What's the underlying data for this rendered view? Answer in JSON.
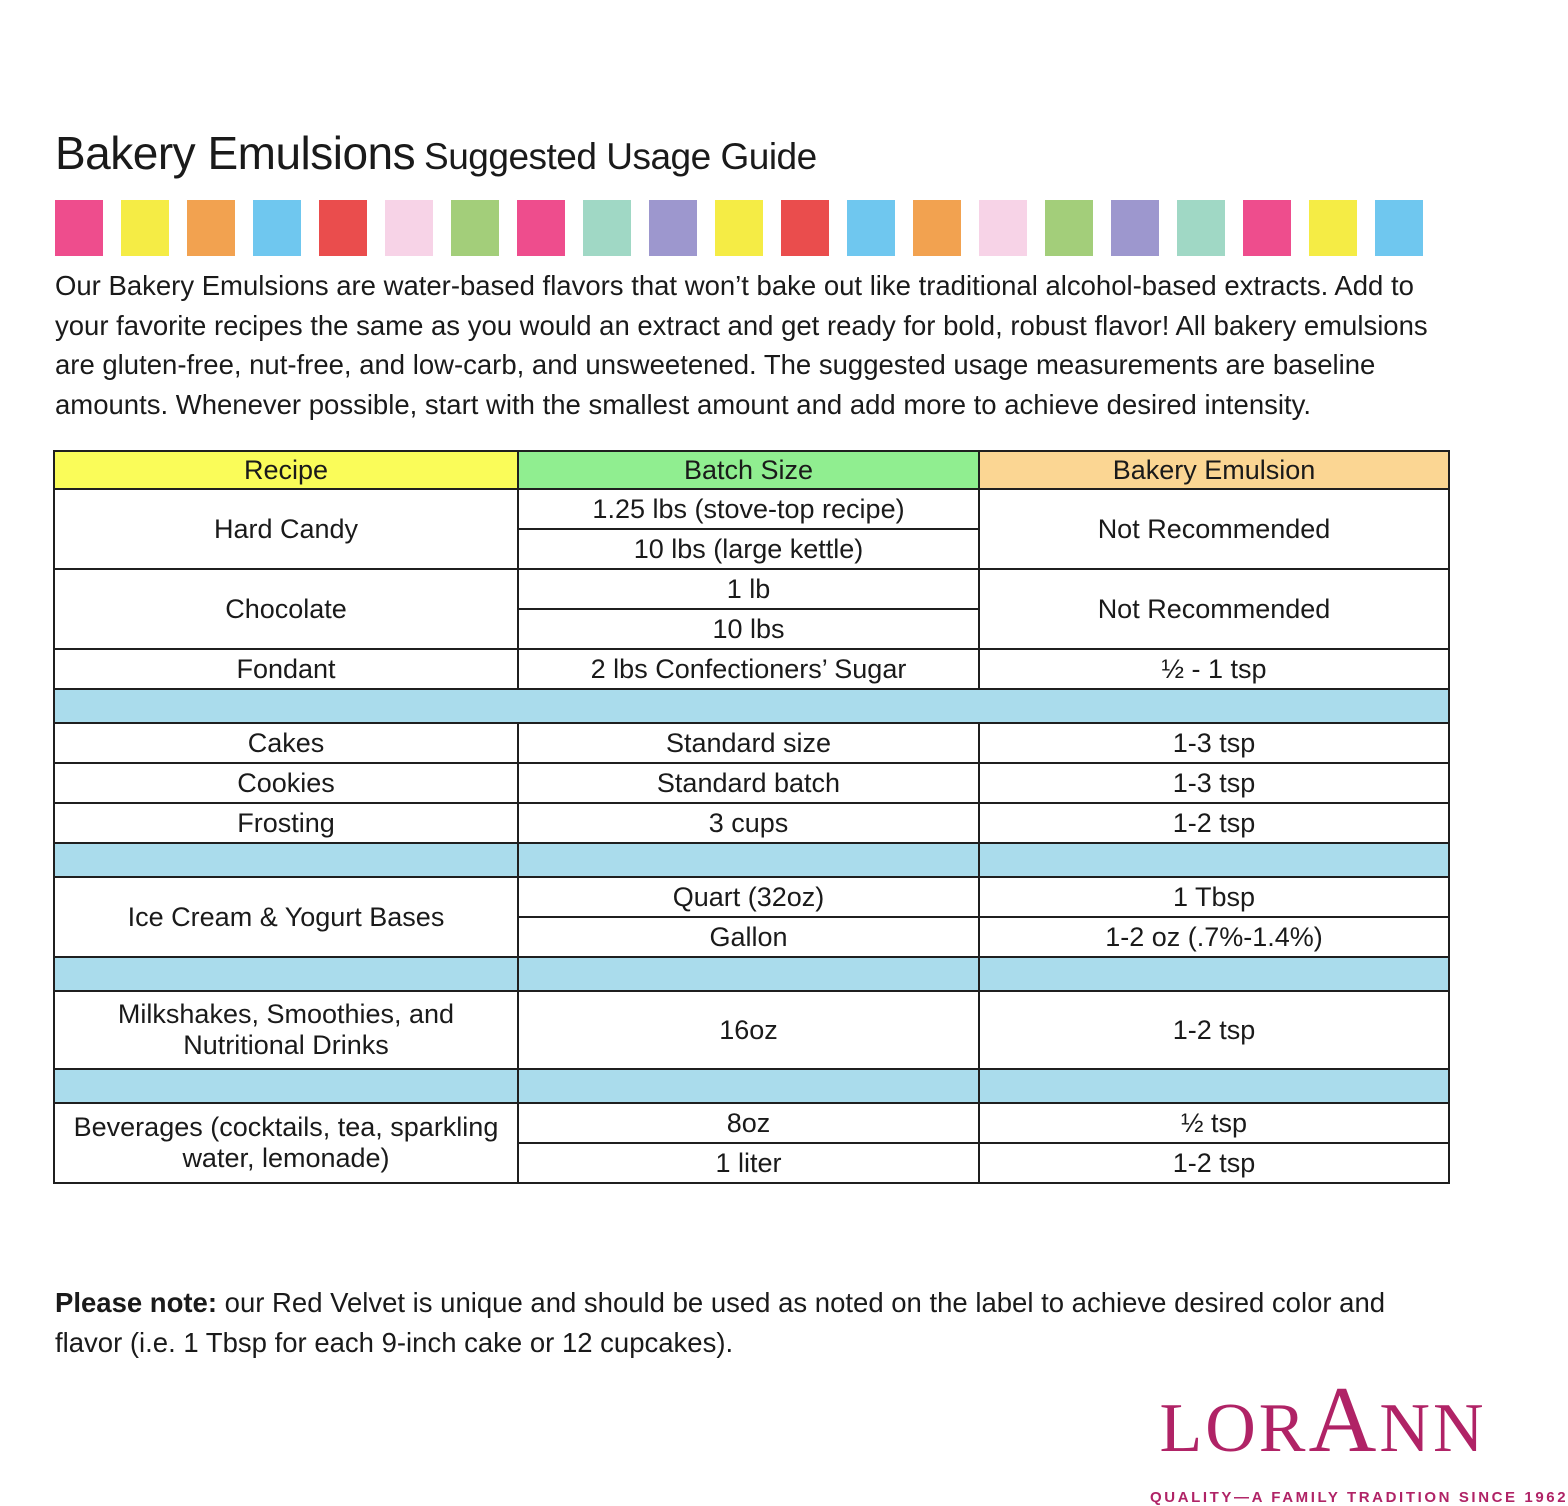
{
  "title": {
    "main": "Bakery Emulsions",
    "sub": "Suggested Usage Guide"
  },
  "decorative_squares": {
    "colors": [
      "#ee4d8d",
      "#f5ec45",
      "#f2a250",
      "#6fc7ef",
      "#ea4d4d",
      "#f7d3e7",
      "#a3ce7a",
      "#ee4d8d",
      "#a0d8c5",
      "#9d97ce",
      "#f5ec45",
      "#ea4d4d",
      "#6fc7ef",
      "#f2a250",
      "#f7d3e7",
      "#a3ce7a",
      "#9d97ce",
      "#a0d8c5",
      "#ee4d8d",
      "#f5ec45",
      "#6fc7ef"
    ]
  },
  "intro": {
    "text": "Our Bakery Emulsions are water-based flavors that won’t bake out like traditional alcohol-based extracts. Add to your favorite recipes the same as you would an extract and get ready for bold, robust flavor! All bakery emulsions are gluten-free, nut-free, and low-carb, and unsweetened. The suggested usage measurements are baseline amounts. Whenever possible, start with the smallest amount and add more to achieve desired intensity."
  },
  "table": {
    "headers": {
      "recipe": "Recipe",
      "batch_size": "Batch Size",
      "bakery_emulsion": "Bakery Emulsion"
    },
    "rows": {
      "hard_candy": {
        "recipe": "Hard Candy",
        "batch1": "1.25 lbs (stove-top recipe)",
        "batch2": "10 lbs (large kettle)",
        "emulsion": "Not Recommended"
      },
      "chocolate": {
        "recipe": "Chocolate",
        "batch1": "1 lb",
        "batch2": "10 lbs",
        "emulsion": "Not Recommended"
      },
      "fondant": {
        "recipe": "Fondant",
        "batch": "2 lbs Confectioners’ Sugar",
        "emulsion": "½ - 1 tsp"
      },
      "cakes": {
        "recipe": "Cakes",
        "batch": "Standard size",
        "emulsion": "1-3 tsp"
      },
      "cookies": {
        "recipe": "Cookies",
        "batch": "Standard batch",
        "emulsion": "1-3 tsp"
      },
      "frosting": {
        "recipe": "Frosting",
        "batch": "3 cups",
        "emulsion": "1-2 tsp"
      },
      "ice_cream": {
        "recipe": "Ice Cream & Yogurt Bases",
        "batch1": "Quart (32oz)",
        "emulsion1": "1 Tbsp",
        "batch2": "Gallon",
        "emulsion2": "1-2 oz (.7%-1.4%)"
      },
      "milkshakes": {
        "recipe": "Milkshakes, Smoothies, and Nutritional Drinks",
        "batch": "16oz",
        "emulsion": "1-2 tsp"
      },
      "beverages": {
        "recipe": "Beverages (cocktails, tea, sparkling water, lemonade)",
        "batch1": "8oz",
        "emulsion1": "½ tsp",
        "batch2": "1 liter",
        "emulsion2": "1-2 tsp"
      }
    }
  },
  "note": {
    "label": "Please note:",
    "text": "our Red Velvet is unique and should be used as noted on the label to achieve desired color and flavor (i.e. 1 Tbsp for each 9-inch cake or 12 cupcakes)."
  },
  "logo": {
    "part1": "LOR",
    "part2": "A",
    "part3": "NN",
    "tagline": "QUALITY—A FAMILY TRADITION SINCE 1962"
  },
  "colors": {
    "header_recipe_bg": "#fafc59",
    "header_batch_bg": "#90ee90",
    "header_emulsion_bg": "#fbd693",
    "separator_bg": "#aadcec",
    "border": "#1f1f1f",
    "text": "#1a1a1a",
    "logo": "#b02366"
  }
}
